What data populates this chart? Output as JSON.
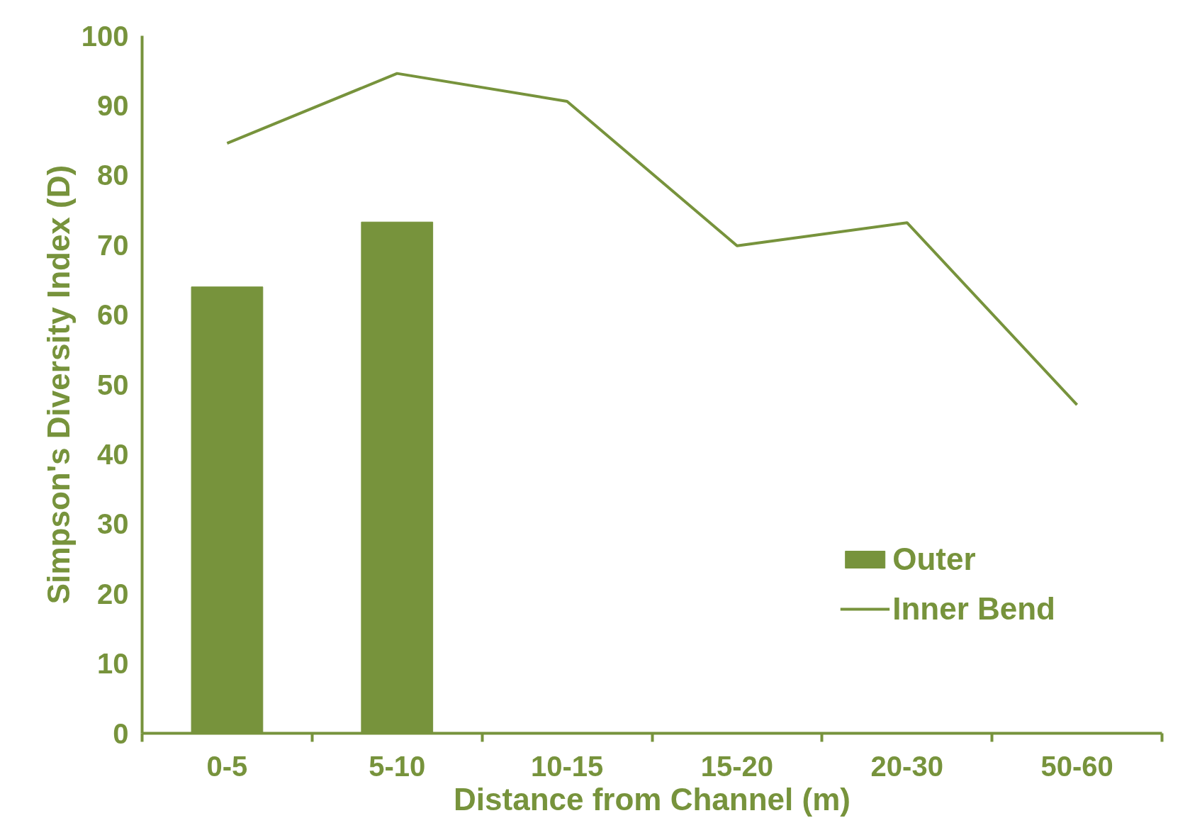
{
  "chart_data": {
    "type": "bar",
    "xlabel": "Distance from Channel (m)",
    "ylabel": "Simpson's Diversity Index (D)",
    "categories": [
      "0-5",
      "5-10",
      "10-15",
      "15-20",
      "20-30",
      "50-60"
    ],
    "series": [
      {
        "name": "Outer",
        "color": "#77933c",
        "values": [
          64,
          73.3,
          null,
          null,
          null,
          null
        ]
      },
      {
        "name": "Inner Bend",
        "type": "line",
        "color": "#77933c",
        "values": [
          84.6,
          94.6,
          90.6,
          69.9,
          73.2,
          47.1
        ]
      }
    ],
    "ylim": [
      0,
      100
    ],
    "yticks": [
      0,
      10,
      20,
      30,
      40,
      50,
      60,
      70,
      80,
      90,
      100
    ],
    "grid": false,
    "legend": "bottom right"
  }
}
